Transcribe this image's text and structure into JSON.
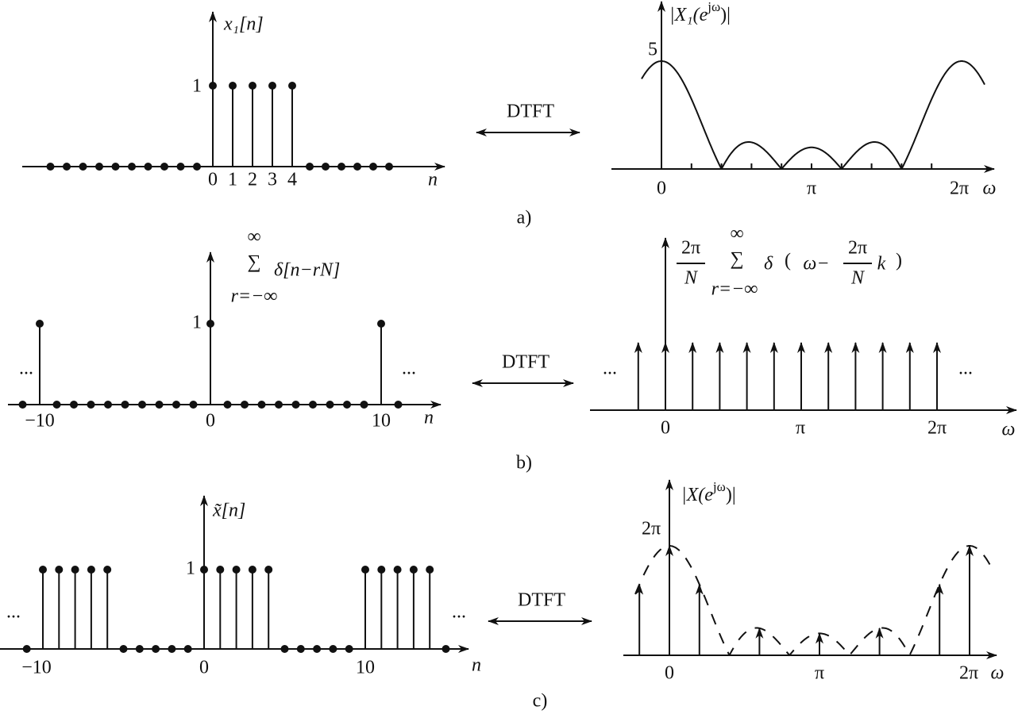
{
  "panels": [
    {
      "caption": "a)",
      "transform": "DTFT",
      "left": {
        "label": "x₁[n]",
        "value_label": "1",
        "ticks": [
          "0",
          "1",
          "2",
          "3",
          "4"
        ],
        "axis": "n"
      },
      "right": {
        "label": {
          "base": "|X₁(e",
          "sup": "jω",
          "end": ")|"
        },
        "value_label": "5",
        "ticks": [
          "0",
          "π",
          "2π"
        ],
        "axis": "ω"
      }
    },
    {
      "caption": "b)",
      "transform": "DTFT",
      "left": {
        "label": {
          "upper": "∞",
          "sum": "∑",
          "lower": "r=−∞",
          "term": "δ[n−rN]"
        },
        "value_label": "1",
        "ticks": [
          "−10",
          "0",
          "10"
        ],
        "axis": "n",
        "ellipsis": "..."
      },
      "right": {
        "label": {
          "frac_num": "2π",
          "frac_den": "N",
          "upper": "∞",
          "sum": "∑",
          "lower": "r=−∞",
          "term": "δ",
          "open": "(",
          "omega": "ω−",
          "frac2_num": "2π",
          "frac2_den": "N",
          "k": "k",
          "close": ")"
        },
        "ticks": [
          "0",
          "π",
          "2π"
        ],
        "axis": "ω",
        "ellipsis": "..."
      }
    },
    {
      "caption": "c)",
      "transform": "DTFT",
      "left": {
        "label": "x̃[n]",
        "value_label": "1",
        "ticks": [
          "−10",
          "0",
          "10"
        ],
        "axis": "n",
        "ellipsis": "..."
      },
      "right": {
        "label": {
          "base": "|X(e",
          "sup": "jω",
          "end": ")|"
        },
        "value_label": "2π",
        "ticks": [
          "0",
          "π",
          "2π"
        ],
        "axis": "ω"
      }
    }
  ]
}
